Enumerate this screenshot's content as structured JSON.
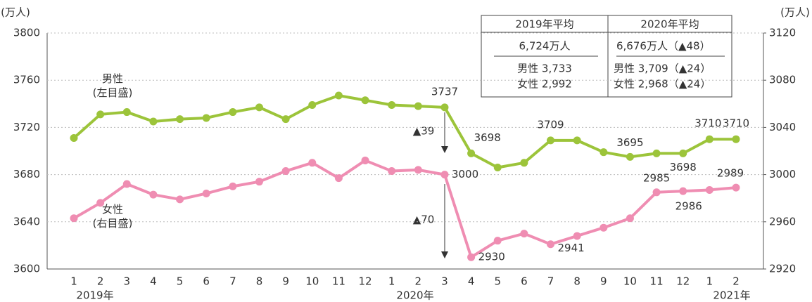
{
  "chart_data": {
    "type": "line",
    "categories": [
      "1",
      "2",
      "3",
      "4",
      "5",
      "6",
      "7",
      "8",
      "9",
      "10",
      "11",
      "12",
      "1",
      "2",
      "3",
      "4",
      "5",
      "6",
      "7",
      "8",
      "9",
      "10",
      "11",
      "12",
      "1",
      "2"
    ],
    "year_labels": [
      "2019年",
      "2020年",
      "2021年"
    ],
    "y_unit": "(万人)",
    "y2_unit": "(万人)",
    "ylim": [
      3600,
      3800
    ],
    "yticks": [
      3600,
      3640,
      3680,
      3720,
      3760,
      3800
    ],
    "y2lim": [
      2920,
      3120
    ],
    "y2ticks": [
      2920,
      2960,
      3000,
      3040,
      3080,
      3120
    ],
    "grid": true,
    "series": [
      {
        "name": "男性\n(左目盛)",
        "color": "#9cc43a",
        "values": [
          3711,
          3731,
          3733,
          3725,
          3727,
          3728,
          3733,
          3737,
          3727,
          3739,
          3747,
          3743,
          3739,
          3738,
          3737,
          3698,
          3686,
          3690,
          3709,
          3709,
          3699,
          3695,
          3698,
          3698,
          3710,
          3710
        ]
      },
      {
        "name": "女性\n(右目盛)",
        "color": "#ef8db2",
        "axis": "y2",
        "values": [
          2963,
          2976,
          2992,
          2983,
          2979,
          2984,
          2990,
          2994,
          3003,
          3010,
          2997,
          3012,
          3003,
          3004,
          3000,
          2930,
          2944,
          2950,
          2941,
          2948,
          2955,
          2963,
          2985,
          2986,
          2987,
          2989
        ]
      }
    ],
    "annotations": [
      "▲39",
      "▲70"
    ],
    "summary_table": {
      "header": [
        "2019年平均",
        "2020年平均"
      ],
      "rows": [
        [
          "6,724万人",
          "6,676万人（▲48）"
        ],
        [
          "男性 3,733",
          "男性 3,709（▲24）"
        ],
        [
          "女性 2,992",
          "女性 2,968（▲24）"
        ]
      ]
    }
  }
}
